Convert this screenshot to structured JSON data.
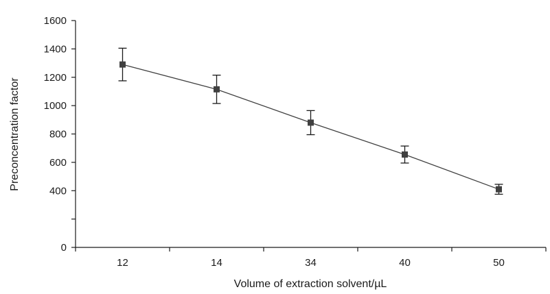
{
  "chart_data": {
    "type": "line",
    "title": "",
    "xlabel": "Volume of extraction solvent/µL",
    "ylabel": "Preconcentration factor",
    "categories": [
      "12",
      "14",
      "34",
      "40",
      "50"
    ],
    "series": [
      {
        "values": [
          1290,
          1115,
          880,
          655,
          410
        ],
        "error": [
          115,
          100,
          85,
          60,
          35
        ],
        "marker": "square",
        "color": "#404040"
      }
    ],
    "y_ticks": [
      0,
      400,
      600,
      800,
      1000,
      1200,
      1400,
      1600
    ],
    "ylim": [
      0,
      1600
    ],
    "y_axis_note": "unlabeled tick between 0 and 400",
    "grid": false,
    "legend": "none"
  }
}
